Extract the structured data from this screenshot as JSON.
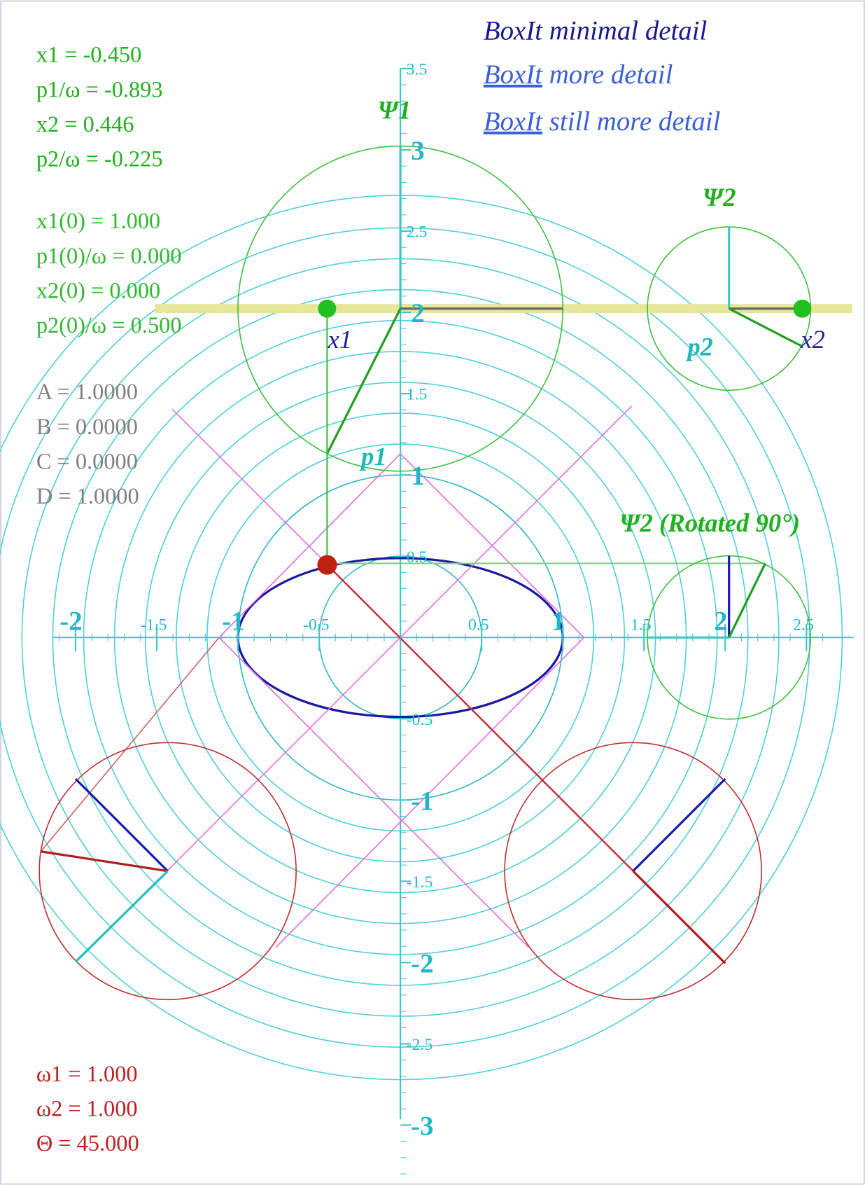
{
  "readouts_green": [
    "x1 = -0.450",
    "p1/ω = -0.893",
    "x2 = 0.446",
    "p2/ω = -0.225"
  ],
  "initial_conditions": [
    "x1(0) = 1.000",
    "p1(0)/ω = 0.000",
    "x2(0) = 0.000",
    "p2(0)/ω = 0.500"
  ],
  "matrix": [
    "A = 1.0000",
    "B = 0.0000",
    "C = 0.0000",
    "D = 1.0000"
  ],
  "parameters": [
    "ω1 = 1.000",
    "ω2 = 1.000",
    "Θ = 45.000"
  ],
  "links": {
    "minimal": "BoxIt minimal detail",
    "more": {
      "link": "BoxIt",
      "text": " more detail"
    },
    "still_more": {
      "link": "BoxIt",
      "text": " still more detail"
    }
  },
  "labels": {
    "psi1": "Ψ1",
    "psi2": "Ψ2",
    "psi2_rotated": "Ψ2 (Rotated 90°)",
    "x1": "x1",
    "p1": "p1",
    "x2": "x2",
    "p2": "p2"
  },
  "xticks": [
    -2,
    -1.5,
    -1,
    -0.5,
    0.5,
    1,
    1.5,
    2,
    2.5
  ],
  "yticks": [
    3.5,
    3,
    2.5,
    2,
    1.5,
    1,
    0.5,
    -0.5,
    -1,
    -1.5,
    -2,
    -2.5,
    -3
  ]
}
